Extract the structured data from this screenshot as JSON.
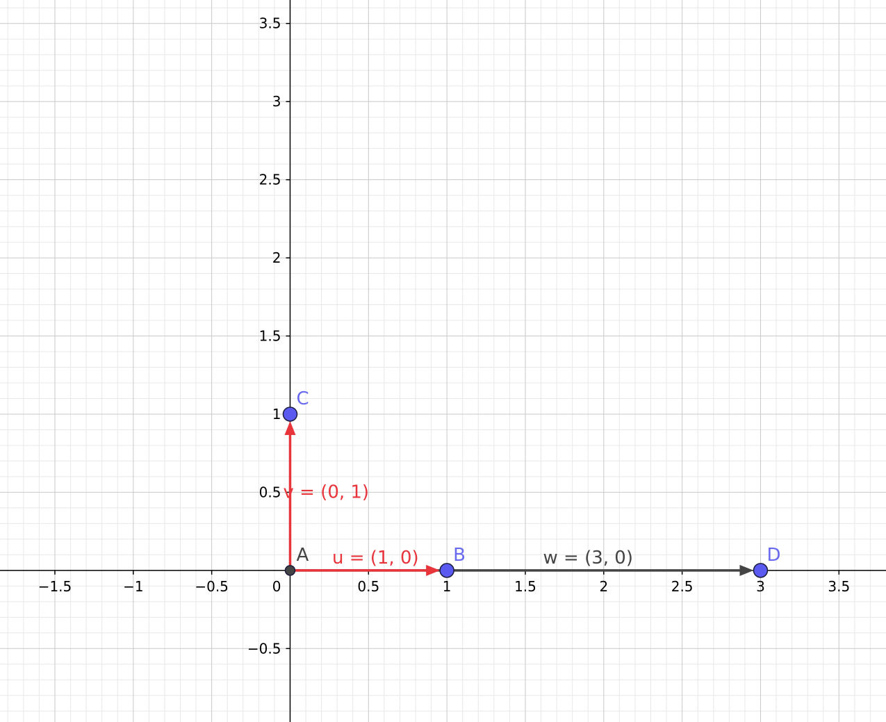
{
  "graph": {
    "x_range": [
      -1.85,
      3.8
    ],
    "y_range": [
      -0.97,
      3.65
    ],
    "major_step": 0.5,
    "minor_step": 0.1,
    "x_ticks": [
      {
        "v": -1.5,
        "label": "−1.5"
      },
      {
        "v": -1,
        "label": "−1"
      },
      {
        "v": -0.5,
        "label": "−0.5"
      },
      {
        "v": 0.5,
        "label": "0.5"
      },
      {
        "v": 1,
        "label": "1"
      },
      {
        "v": 1.5,
        "label": "1.5"
      },
      {
        "v": 2,
        "label": "2"
      },
      {
        "v": 2.5,
        "label": "2.5"
      },
      {
        "v": 3,
        "label": "3"
      },
      {
        "v": 3.5,
        "label": "3.5"
      }
    ],
    "y_ticks": [
      {
        "v": -0.5,
        "label": "−0.5"
      },
      {
        "v": 0.5,
        "label": "0.5"
      },
      {
        "v": 1,
        "label": "1"
      },
      {
        "v": 1.5,
        "label": "1.5"
      },
      {
        "v": 2,
        "label": "2"
      },
      {
        "v": 2.5,
        "label": "2.5"
      },
      {
        "v": 3,
        "label": "3"
      },
      {
        "v": 3.5,
        "label": "3.5"
      }
    ],
    "origin_label": "0",
    "colors": {
      "minor_grid": "#e8e8e8",
      "major_grid": "#c8c8c8",
      "axis": "#000000",
      "point_fill": "#5a5af0",
      "point_stroke": "#1a1a3a",
      "origin_point_fill": "#444444",
      "point_label": "#6a6af0",
      "origin_label": "#444444",
      "vector_red": "#e8343b",
      "vector_dark": "#444444"
    }
  },
  "points": [
    {
      "id": "A",
      "label": "A",
      "x": 0,
      "y": 0,
      "kind": "origin"
    },
    {
      "id": "B",
      "label": "B",
      "x": 1,
      "y": 0,
      "kind": "free"
    },
    {
      "id": "C",
      "label": "C",
      "x": 0,
      "y": 1,
      "kind": "free"
    },
    {
      "id": "D",
      "label": "D",
      "x": 3,
      "y": 0,
      "kind": "free"
    }
  ],
  "vectors": [
    {
      "id": "w",
      "from": "A",
      "to": "D",
      "label": "w = (3, 0)",
      "color": "vector_dark"
    },
    {
      "id": "u",
      "from": "A",
      "to": "B",
      "label": "u = (1, 0)",
      "color": "vector_red"
    },
    {
      "id": "v",
      "from": "A",
      "to": "C",
      "label": "v = (0, 1)",
      "color": "vector_red"
    }
  ]
}
